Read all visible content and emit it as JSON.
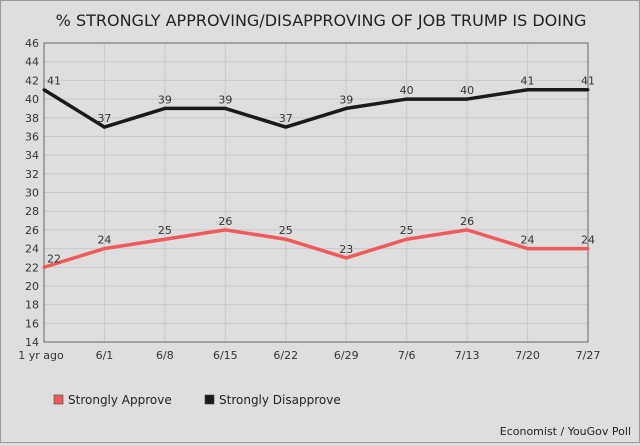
{
  "chart_data": {
    "type": "line",
    "title": "% STRONGLY APPROVING/DISAPPROVING OF JOB TRUMP IS DOING",
    "categories": [
      "1 yr ago",
      "6/1",
      "6/8",
      "6/15",
      "6/22",
      "6/29",
      "7/6",
      "7/13",
      "7/20",
      "7/27"
    ],
    "series": [
      {
        "name": "Strongly Approve",
        "color": "#f05a5a",
        "values": [
          22,
          24,
          25,
          26,
          25,
          23,
          25,
          26,
          24,
          24
        ]
      },
      {
        "name": "Strongly Disapprove",
        "color": "#1a1a1a",
        "values": [
          41,
          37,
          39,
          39,
          37,
          39,
          40,
          40,
          41,
          41
        ]
      }
    ],
    "yticks": [
      14,
      16,
      18,
      20,
      22,
      24,
      26,
      28,
      30,
      32,
      34,
      36,
      38,
      40,
      42,
      44,
      46
    ],
    "ylim": [
      14,
      46
    ],
    "grid": true,
    "legend": "bottom-left",
    "source": "Economist / YouGov Poll"
  }
}
